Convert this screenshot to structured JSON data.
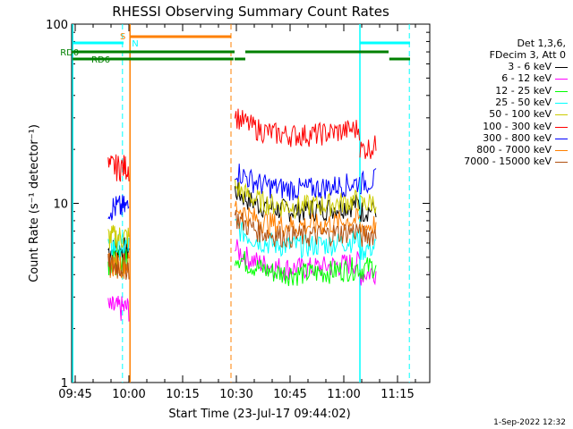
{
  "chart_data": {
    "type": "line",
    "title": "RHESSI Observing Summary Count Rates",
    "xlabel": "Start Time (23-Jul-17 09:44:02)",
    "ylabel": "Count Rate (s⁻¹ detector⁻¹)",
    "yscale": "log",
    "ylim": [
      1,
      100
    ],
    "xlim_minutes_after_0944": [
      0,
      100
    ],
    "x_ticks": [
      "09:45",
      "10:00",
      "10:15",
      "10:30",
      "10:45",
      "11:00",
      "11:15"
    ],
    "y_ticks": [
      "1",
      "10",
      "100"
    ],
    "legend_header": [
      "Det 1,3,6,",
      "FDecim 3, Att 0"
    ],
    "series": [
      {
        "name": "3 - 6 keV",
        "color": "#000000",
        "seg1_level": 5.5,
        "seg2_level": 9.5,
        "seg3_level": 9.0
      },
      {
        "name": "6 - 12 keV",
        "color": "#ff00ff",
        "seg1_level": 2.6,
        "seg2_level": 4.5,
        "seg3_level": 4.0
      },
      {
        "name": "12 - 25 keV",
        "color": "#00ff00",
        "seg1_level": 4.8,
        "seg2_level": 4.2,
        "seg3_level": 4.3
      },
      {
        "name": "25 - 50 keV",
        "color": "#00ffff",
        "seg1_level": 5.8,
        "seg2_level": 6.0,
        "seg3_level": 5.5
      },
      {
        "name": "50 - 100 keV",
        "color": "#cccc00",
        "seg1_level": 6.5,
        "seg2_level": 10.0,
        "seg3_level": 9.8
      },
      {
        "name": "100 - 300 keV",
        "color": "#ff0000",
        "seg1_level": 16.0,
        "seg2_level": 25.0,
        "seg3_level": 20.0
      },
      {
        "name": "300 - 800 keV",
        "color": "#0000ff",
        "seg1_level": 9.5,
        "seg2_level": 12.5,
        "seg3_level": 13.0
      },
      {
        "name": "800 - 7000 keV",
        "color": "#ff8000",
        "seg1_level": 4.6,
        "seg2_level": 7.8,
        "seg3_level": 7.3
      },
      {
        "name": "7000 - 15000 keV",
        "color": "#b05010",
        "seg1_level": 4.5,
        "seg2_level": 6.8,
        "seg3_level": 6.5
      }
    ],
    "flags": [
      {
        "label": "S",
        "color": "#ff8000"
      },
      {
        "label": "N",
        "color": "#00ffff"
      },
      {
        "label": "RD0",
        "color": "#008000"
      },
      {
        "label": "RD6",
        "color": "#008000"
      }
    ],
    "footer": "1-Sep-2022 12:32"
  }
}
